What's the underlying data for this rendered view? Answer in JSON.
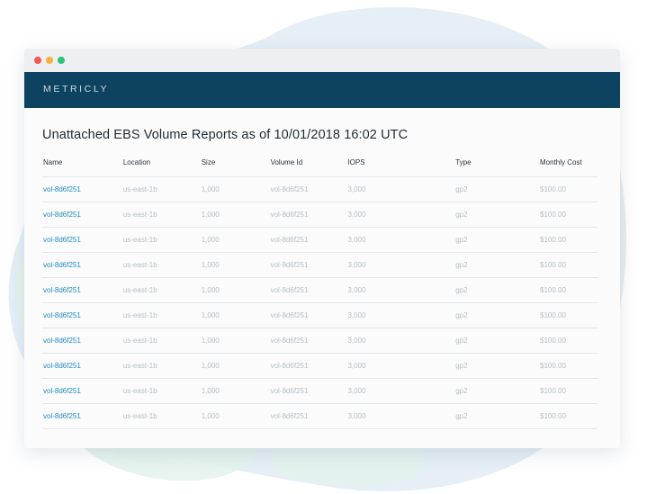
{
  "brand": "METRICLY",
  "report": {
    "title": "Unattached EBS Volume Reports as of 10/01/2018 16:02 UTC"
  },
  "table": {
    "columns": [
      "Name",
      "Location",
      "Size",
      "Volume Id",
      "IOPS",
      "Type",
      "Monthly Cost"
    ],
    "rows": [
      [
        "vol-8d6f251",
        "us-east-1b",
        "1,000",
        "vol-8d6f251",
        "3,000",
        "gp2",
        "$100.00"
      ],
      [
        "vol-8d6f251",
        "us-east-1b",
        "1,000",
        "vol-8d6f251",
        "3,000",
        "gp2",
        "$100.00"
      ],
      [
        "vol-8d6f251",
        "us-east-1b",
        "1,000",
        "vol-8d6f251",
        "3,000",
        "gp2",
        "$100.00"
      ],
      [
        "vol-8d6f251",
        "us-east-1b",
        "1,000",
        "vol-8d6f251",
        "3,000",
        "gp2",
        "$100.00"
      ],
      [
        "vol-8d6f251",
        "us-east-1b",
        "1,000",
        "vol-8d6f251",
        "3,000",
        "gp2",
        "$100.00"
      ],
      [
        "vol-8d6f251",
        "us-east-1b",
        "1,000",
        "vol-8d6f251",
        "3,000",
        "gp2",
        "$100.00"
      ],
      [
        "vol-8d6f251",
        "us-east-1b",
        "1,000",
        "vol-8d6f251",
        "3,000",
        "gp2",
        "$100.00"
      ],
      [
        "vol-8d6f251",
        "us-east-1b",
        "1,000",
        "vol-8d6f251",
        "3,000",
        "gp2",
        "$100.00"
      ],
      [
        "vol-8d6f251",
        "us-east-1b",
        "1,000",
        "vol-8d6f251",
        "3,000",
        "gp2",
        "$100.00"
      ],
      [
        "vol-8d6f251",
        "us-east-1b",
        "1,000",
        "vol-8d6f251",
        "3,000",
        "gp2",
        "$100.00"
      ]
    ]
  },
  "colors": {
    "appbar": "#0d4360",
    "link": "#1f8bbf",
    "muted": "#b6c0c6",
    "blob_blue": "#e4eef6",
    "blob_green": "#e3f3ef"
  }
}
